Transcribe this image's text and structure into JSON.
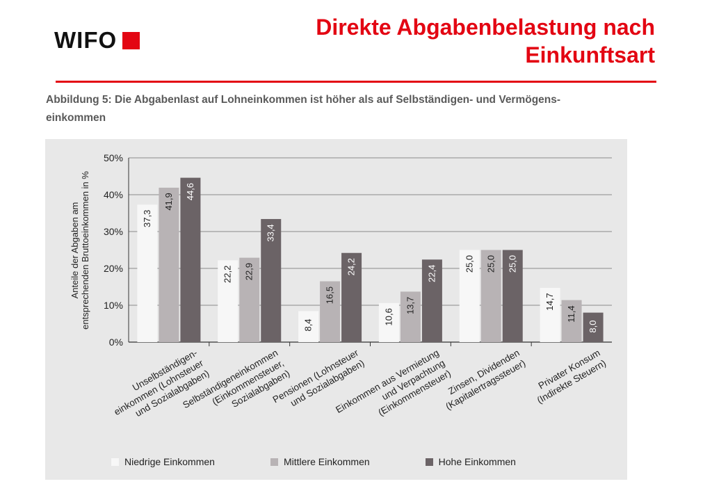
{
  "header": {
    "logo_text": "WIFO",
    "title_line1": "Direkte Abgabenbelastung nach",
    "title_line2": "Einkunftsart"
  },
  "caption": {
    "line1": "Abbildung 5: Die Abgabenlast auf Lohneinkommen ist höher als auf Selbständigen- und Vermögens-",
    "line2": "einkommen"
  },
  "chart_data": {
    "type": "bar",
    "title": "",
    "ylabel_lines": [
      "Anteile der Abgaben am",
      "entsprechenden Bruttoeinkommen in %"
    ],
    "ylim": [
      0,
      50
    ],
    "yticks": [
      "0%",
      "10%",
      "20%",
      "30%",
      "40%",
      "50%"
    ],
    "grid": true,
    "legend_position": "bottom",
    "categories": [
      [
        "Unselbständigen-",
        "einkommen (Lohnsteuer",
        "und Sozialabgaben)"
      ],
      [
        "Selbständigeneinkommen",
        "(Einkommensteuer,",
        "Sozialabgaben)"
      ],
      [
        "Pensionen (Lohnsteuer",
        "und Sozialabgaben)"
      ],
      [
        "Einkommen aus Vermietung",
        "und Verpachtung",
        "(Einkommensteuer)"
      ],
      [
        "Zinsen, Dividenden",
        "(Kapitalertragssteuer)"
      ],
      [
        "Privater Konsum",
        "(Indirekte Steuern)"
      ]
    ],
    "series": [
      {
        "name": "Niedrige Einkommen",
        "color": "#f7f7f7",
        "label_color": "#222222",
        "values": [
          37.3,
          22.2,
          8.4,
          10.6,
          25.0,
          14.7
        ],
        "labels": [
          "37,3",
          "22,2",
          "8,4",
          "10,6",
          "25,0",
          "14,7"
        ]
      },
      {
        "name": "Mittlere Einkommen",
        "color": "#b8b3b5",
        "label_color": "#222222",
        "values": [
          41.9,
          22.9,
          16.5,
          13.7,
          25.0,
          11.4
        ],
        "labels": [
          "41,9",
          "22,9",
          "16,5",
          "13,7",
          "25,0",
          "11,4"
        ]
      },
      {
        "name": "Hohe Einkommen",
        "color": "#6b6366",
        "label_color": "#ffffff",
        "values": [
          44.6,
          33.4,
          24.2,
          22.4,
          25.0,
          8.0
        ],
        "labels": [
          "44,6",
          "33,4",
          "24,2",
          "22,4",
          "25,0",
          "8,0"
        ]
      }
    ]
  }
}
